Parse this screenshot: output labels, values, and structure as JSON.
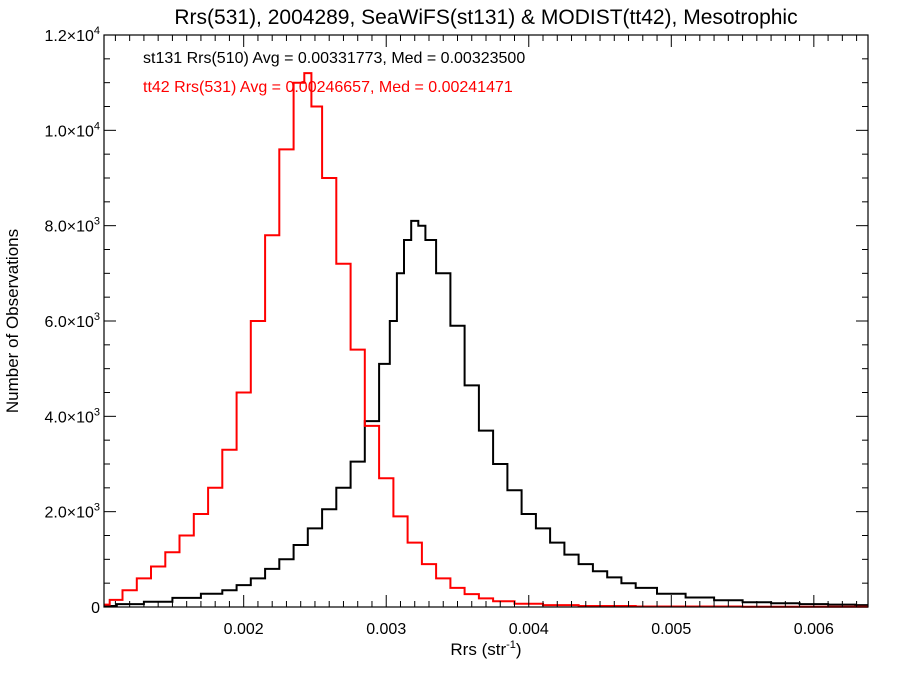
{
  "chart_data": {
    "type": "line",
    "title": "Rrs(531), 2004289, SeaWiFS(st131) & MODIST(tt42), Mesotrophic",
    "xlabel": "Rrs (str",
    "xlabel_sup": "-1",
    "xlabel_tail": ")",
    "ylabel": "Number of Observations",
    "xlim": [
      0.00102,
      0.00638
    ],
    "ylim": [
      0,
      12000
    ],
    "xticks": [
      {
        "value": 0.002,
        "label": "0.002"
      },
      {
        "value": 0.003,
        "label": "0.003"
      },
      {
        "value": 0.004,
        "label": "0.004"
      },
      {
        "value": 0.005,
        "label": "0.005"
      },
      {
        "value": 0.006,
        "label": "0.006"
      }
    ],
    "yticks": [
      {
        "value": 0,
        "mant": "0",
        "exp": ""
      },
      {
        "value": 2000,
        "mant": "2.0×10",
        "exp": "3"
      },
      {
        "value": 4000,
        "mant": "4.0×10",
        "exp": "3"
      },
      {
        "value": 6000,
        "mant": "6.0×10",
        "exp": "3"
      },
      {
        "value": 8000,
        "mant": "8.0×10",
        "exp": "3"
      },
      {
        "value": 10000,
        "mant": "1.0×10",
        "exp": "4"
      },
      {
        "value": 12000,
        "mant": "1.2×10",
        "exp": "4"
      }
    ],
    "grid": false,
    "series": [
      {
        "color": "#000000",
        "annotation": "st131 Rrs(510) Avg = 0.00331773, Med = 0.00323500",
        "points": [
          [
            0.00102,
            20
          ],
          [
            0.0012,
            60
          ],
          [
            0.0014,
            110
          ],
          [
            0.0016,
            190
          ],
          [
            0.0018,
            280
          ],
          [
            0.0019,
            350
          ],
          [
            0.002,
            460
          ],
          [
            0.0021,
            600
          ],
          [
            0.0022,
            800
          ],
          [
            0.0023,
            1000
          ],
          [
            0.0024,
            1300
          ],
          [
            0.0025,
            1650
          ],
          [
            0.0026,
            2050
          ],
          [
            0.0027,
            2500
          ],
          [
            0.0028,
            3050
          ],
          [
            0.0029,
            3900
          ],
          [
            0.003,
            5100
          ],
          [
            0.00305,
            6000
          ],
          [
            0.0031,
            7000
          ],
          [
            0.00315,
            7700
          ],
          [
            0.0032,
            8100
          ],
          [
            0.00325,
            8000
          ],
          [
            0.0033,
            7700
          ],
          [
            0.0034,
            7000
          ],
          [
            0.0035,
            5900
          ],
          [
            0.0036,
            4650
          ],
          [
            0.0037,
            3700
          ],
          [
            0.0038,
            3000
          ],
          [
            0.0039,
            2450
          ],
          [
            0.004,
            1950
          ],
          [
            0.0041,
            1650
          ],
          [
            0.0042,
            1350
          ],
          [
            0.0043,
            1100
          ],
          [
            0.0044,
            900
          ],
          [
            0.0045,
            750
          ],
          [
            0.0046,
            620
          ],
          [
            0.0047,
            500
          ],
          [
            0.0048,
            400
          ],
          [
            0.005,
            280
          ],
          [
            0.0052,
            200
          ],
          [
            0.0054,
            140
          ],
          [
            0.0056,
            100
          ],
          [
            0.0058,
            80
          ],
          [
            0.006,
            60
          ],
          [
            0.0062,
            50
          ],
          [
            0.00638,
            40
          ]
        ]
      },
      {
        "color": "#ff0000",
        "annotation": "tt42 Rrs(531) Avg = 0.00246657, Med = 0.00241471",
        "points": [
          [
            0.00102,
            50
          ],
          [
            0.0011,
            150
          ],
          [
            0.0012,
            350
          ],
          [
            0.0013,
            600
          ],
          [
            0.0014,
            850
          ],
          [
            0.0015,
            1150
          ],
          [
            0.0016,
            1500
          ],
          [
            0.0017,
            1950
          ],
          [
            0.0018,
            2500
          ],
          [
            0.0019,
            3300
          ],
          [
            0.002,
            4500
          ],
          [
            0.0021,
            6000
          ],
          [
            0.0022,
            7800
          ],
          [
            0.0023,
            9600
          ],
          [
            0.0024,
            11000
          ],
          [
            0.00245,
            11200
          ],
          [
            0.0025,
            10500
          ],
          [
            0.0026,
            9000
          ],
          [
            0.0027,
            7200
          ],
          [
            0.0028,
            5400
          ],
          [
            0.0029,
            3800
          ],
          [
            0.003,
            2700
          ],
          [
            0.0031,
            1900
          ],
          [
            0.0032,
            1350
          ],
          [
            0.0033,
            900
          ],
          [
            0.0034,
            600
          ],
          [
            0.0035,
            400
          ],
          [
            0.0036,
            270
          ],
          [
            0.0037,
            180
          ],
          [
            0.0038,
            120
          ],
          [
            0.004,
            70
          ],
          [
            0.0042,
            40
          ],
          [
            0.0045,
            20
          ],
          [
            0.005,
            10
          ],
          [
            0.006,
            5
          ],
          [
            0.00638,
            5
          ]
        ]
      }
    ]
  }
}
